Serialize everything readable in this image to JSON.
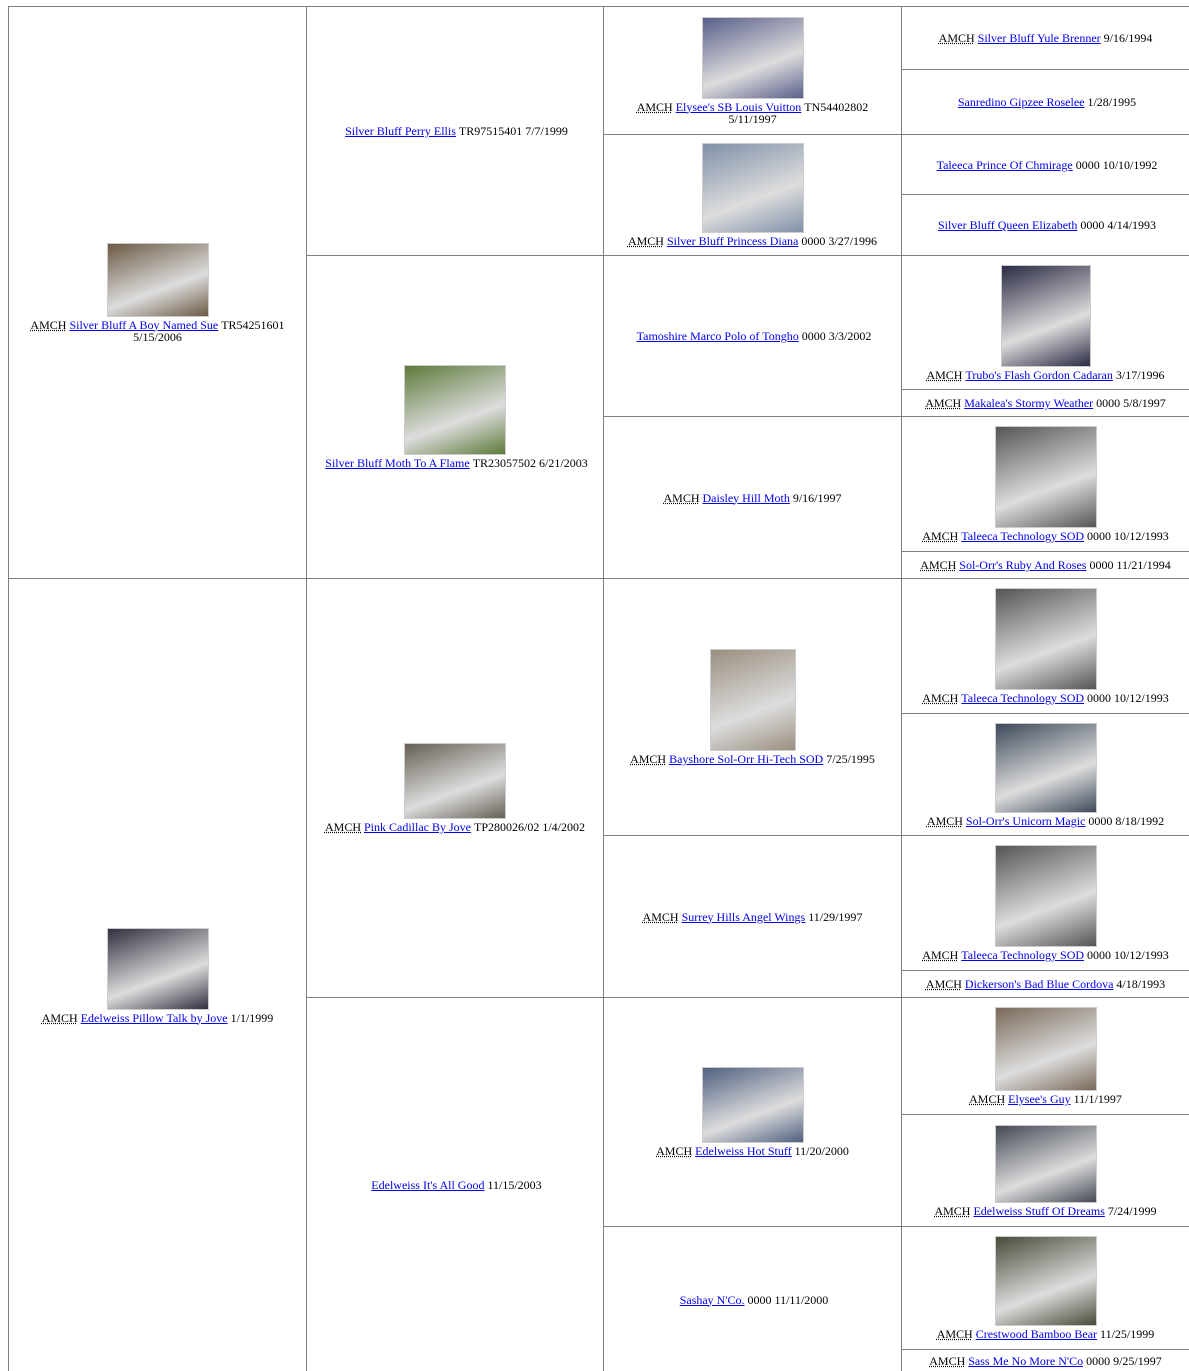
{
  "cells": [
    {
      "title": "AMCH",
      "name": "Silver Bluff A Boy Named Sue",
      "info": "TR54251601 5/15/2006"
    },
    {
      "name": "Silver Bluff Perry Ellis",
      "info": "TR97515401 7/7/1999"
    },
    {
      "title": "AMCH",
      "name": "Elysee's SB Louis Vuitton",
      "info": "TN54402802 5/11/1997"
    },
    {
      "title": "AMCH",
      "name": "Silver Bluff Yule Brenner",
      "info": "9/16/1994"
    },
    {
      "name": "Sanredino Gipzee Roselee",
      "info": "1/28/1995"
    },
    {
      "title": "AMCH",
      "name": "Silver Bluff Princess Diana",
      "info": "0000 3/27/1996"
    },
    {
      "name": "Taleeca Prince Of Chmirage",
      "info": "0000 10/10/1992"
    },
    {
      "name": "Silver Bluff Queen Elizabeth",
      "info": "0000 4/14/1993"
    },
    {
      "name": "Silver Bluff Moth To A Flame",
      "info": "TR23057502 6/21/2003"
    },
    {
      "name": "Tamoshire Marco Polo of Tongho",
      "info": "0000 3/3/2002"
    },
    {
      "title": "AMCH",
      "name": "Trubo's Flash Gordon Cadaran",
      "info": "3/17/1996"
    },
    {
      "title": "AMCH",
      "name": "Makalea's Stormy Weather",
      "info": "0000 5/8/1997"
    },
    {
      "title": "AMCH",
      "name": "Daisley Hill Moth",
      "info": "9/16/1997"
    },
    {
      "title": "AMCH",
      "name": "Taleeca Technology SOD",
      "info": "0000 10/12/1993"
    },
    {
      "title": "AMCH",
      "name": "Sol-Orr's Ruby And Roses",
      "info": "0000 11/21/1994"
    },
    {
      "title": "AMCH",
      "name": "Edelweiss Pillow Talk by Jove",
      "info": "1/1/1999"
    },
    {
      "title": "AMCH",
      "name": "Pink Cadillac By Jove",
      "info": "TP280026/02 1/4/2002"
    },
    {
      "title": "AMCH",
      "name": "Bayshore Sol-Orr Hi-Tech SOD",
      "info": "7/25/1995"
    },
    {
      "title": "AMCH",
      "name": "Taleeca Technology SOD",
      "info": "0000 10/12/1993"
    },
    {
      "title": "AMCH",
      "name": "Sol-Orr's Unicorn Magic",
      "info": "0000 8/18/1992"
    },
    {
      "title": "AMCH",
      "name": "Surrey Hills Angel Wings",
      "info": "11/29/1997"
    },
    {
      "title": "AMCH",
      "name": "Taleeca Technology SOD",
      "info": "0000 10/12/1993"
    },
    {
      "title": "AMCH",
      "name": "Dickerson's Bad Blue Cordova",
      "info": "4/18/1993"
    },
    {
      "name": "Edelweiss It's All Good",
      "info": "11/15/2003"
    },
    {
      "title": "AMCH",
      "name": "Edelweiss Hot Stuff",
      "info": "11/20/2000"
    },
    {
      "title": "AMCH",
      "name": "Elysee's Guy",
      "info": "11/1/1997"
    },
    {
      "title": "AMCH",
      "name": "Edelweiss Stuff Of Dreams",
      "info": "7/24/1999"
    },
    {
      "name": "Sashay N'Co.",
      "info": "0000 11/11/2000"
    },
    {
      "title": "AMCH",
      "name": "Crestwood Bamboo Bear",
      "info": "11/25/1999"
    },
    {
      "title": "AMCH",
      "name": "Sass Me No More N'Co",
      "info": "0000 9/25/1997"
    }
  ]
}
